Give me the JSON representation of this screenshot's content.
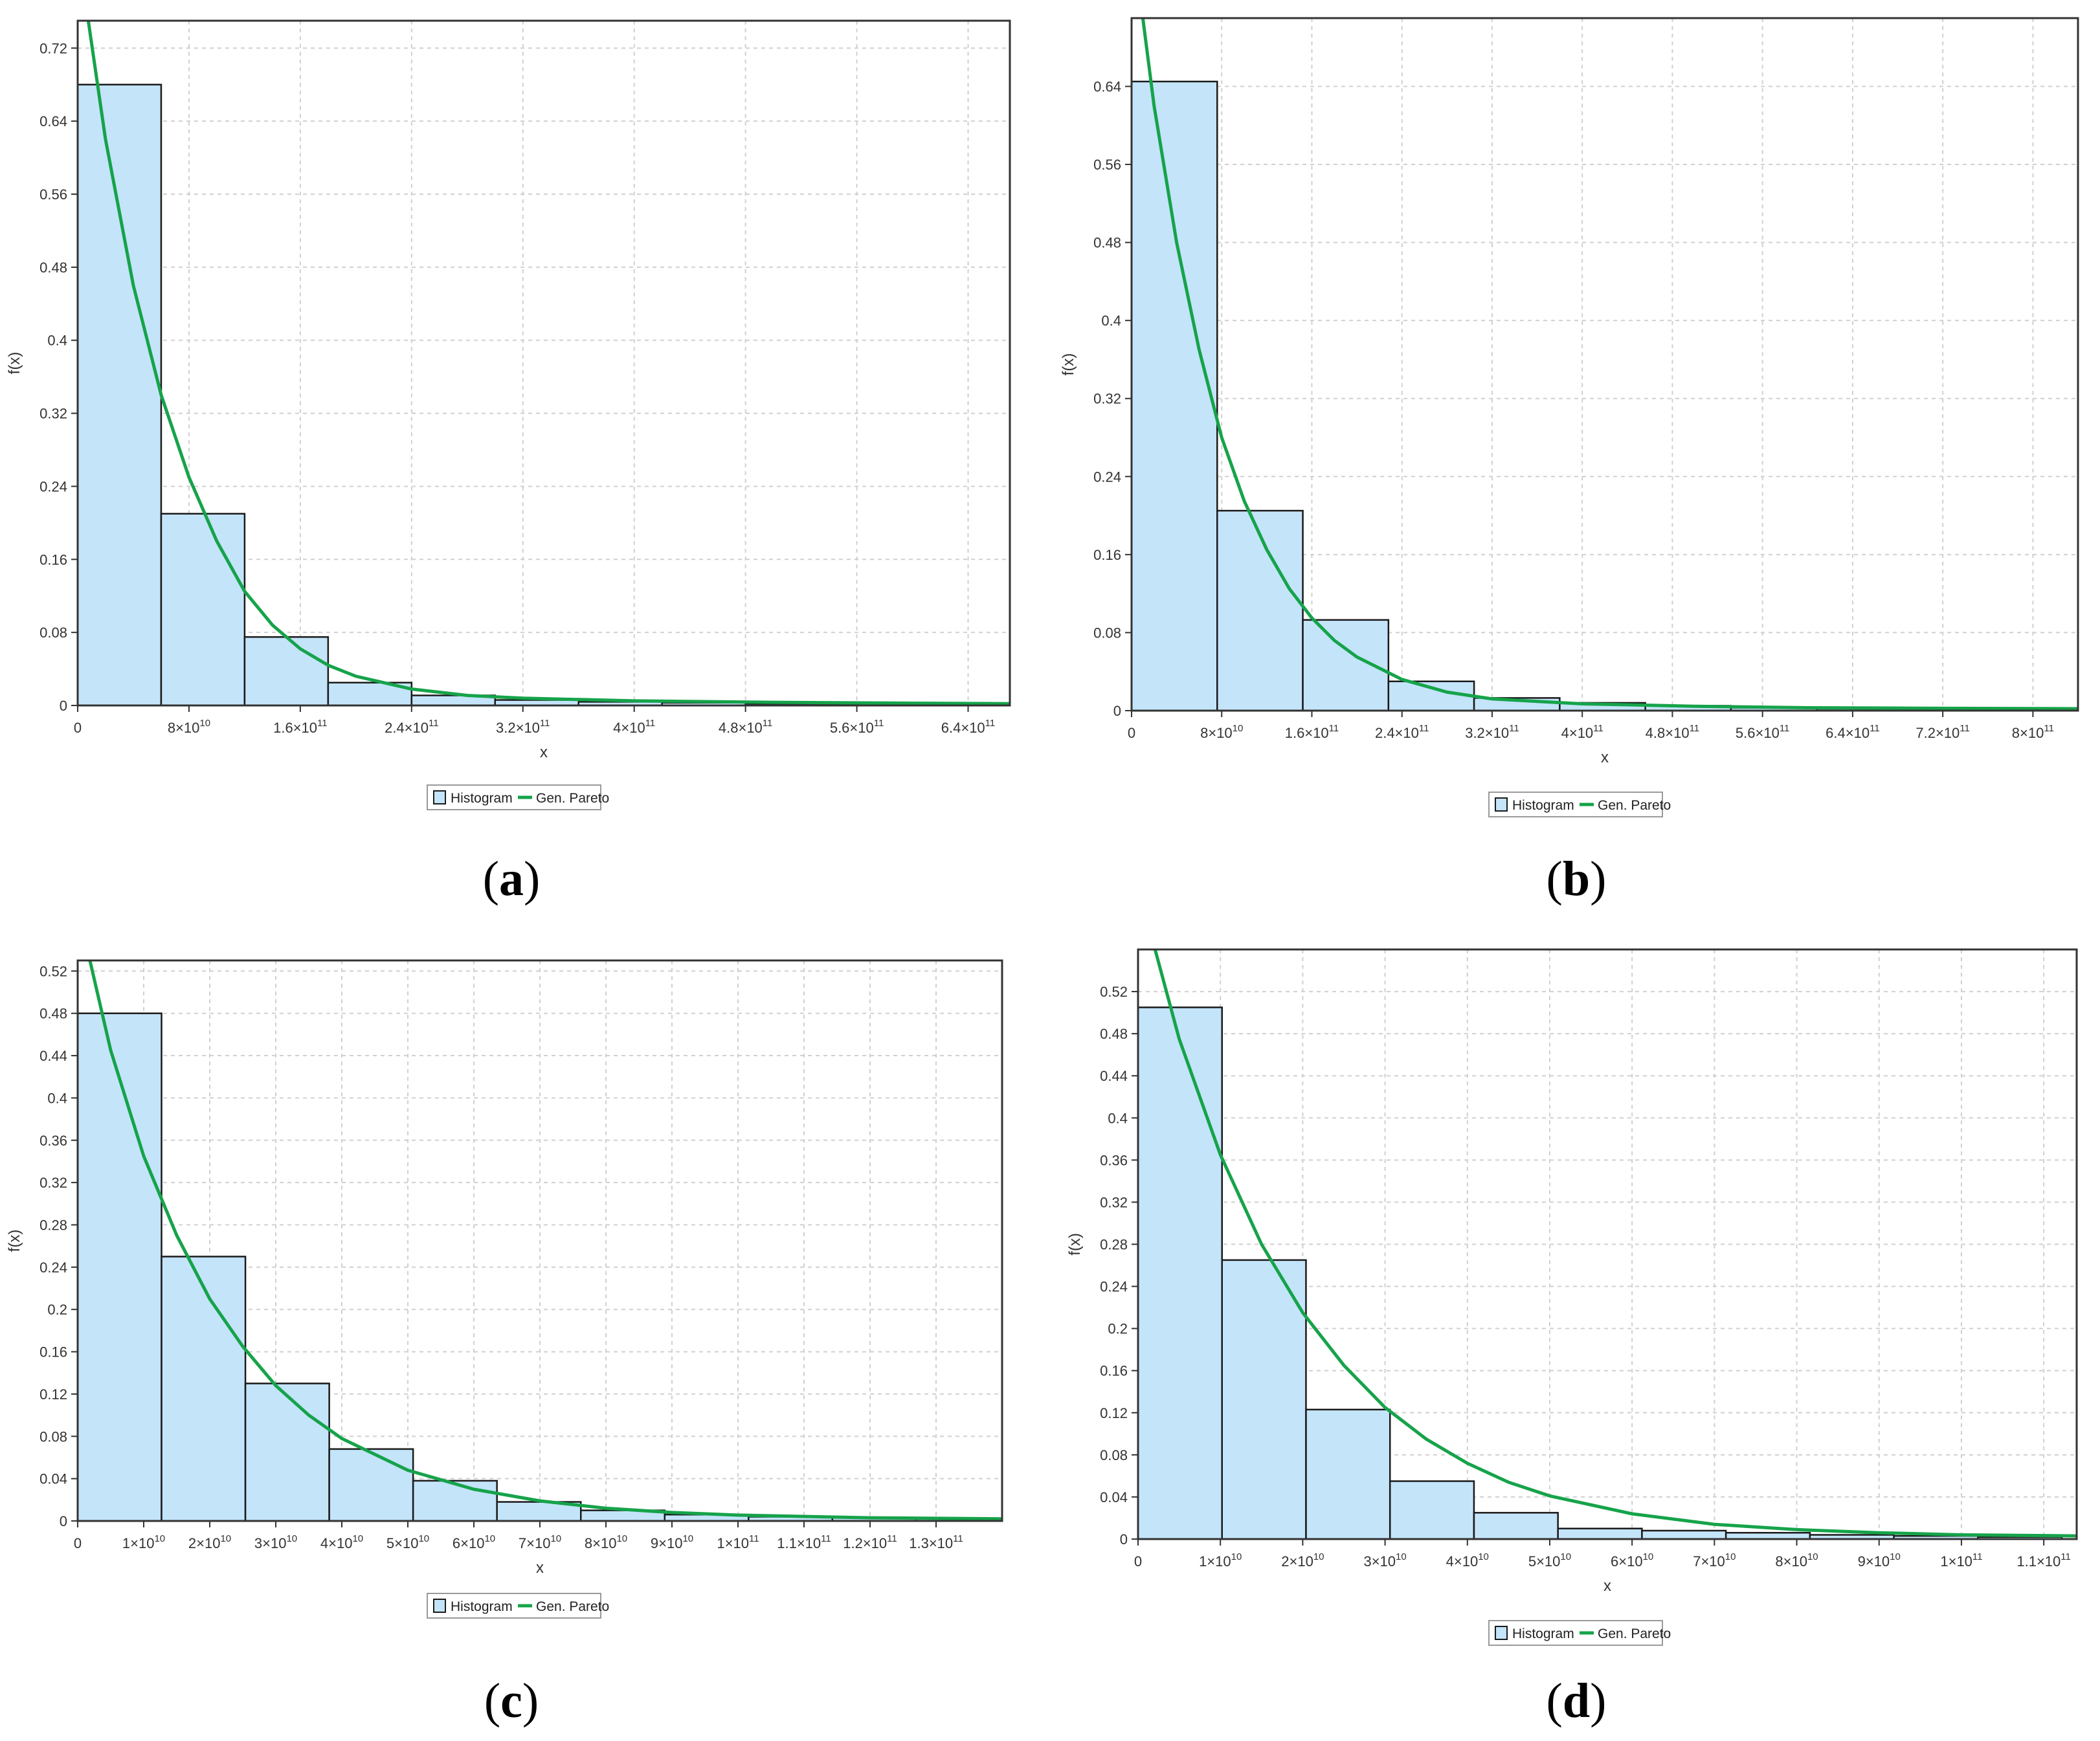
{
  "colors": {
    "bar_fill": "#c4e4fa",
    "bar_stroke": "#1a1a1a",
    "curve": "#16a34a",
    "grid": "#d0d0d0",
    "frame": "#333333"
  },
  "legend": {
    "histogram": "Histogram",
    "curve": "Gen. Pareto"
  },
  "captions": [
    "a",
    "b",
    "c",
    "d"
  ],
  "chart_data": [
    {
      "type": "bar",
      "panel": "a",
      "xlabel": "x",
      "ylabel": "f(x)",
      "xlim": [
        0,
        670000000000.0
      ],
      "ylim": [
        0,
        0.75
      ],
      "yticks": [
        0,
        0.08,
        0.16,
        0.24,
        0.32,
        0.4,
        0.48,
        0.56,
        0.64,
        0.72
      ],
      "yticklabels": [
        "0",
        "0.08",
        "0.16",
        "0.24",
        "0.32",
        "0.4",
        "0.48",
        "0.56",
        "0.64",
        "0.72"
      ],
      "xticks": [
        0,
        80000000000.0,
        160000000000.0,
        240000000000.0,
        320000000000.0,
        400000000000.0,
        480000000000.0,
        560000000000.0,
        640000000000.0
      ],
      "xticklabels": [
        [
          "0",
          ""
        ],
        [
          "8×10",
          "10"
        ],
        [
          "1.6×10",
          "11"
        ],
        [
          "2.4×10",
          "11"
        ],
        [
          "3.2×10",
          "11"
        ],
        [
          "4×10",
          "11"
        ],
        [
          "4.8×10",
          "11"
        ],
        [
          "5.6×10",
          "11"
        ],
        [
          "6.4×10",
          "11"
        ]
      ],
      "bin_edges": [
        0,
        60000000000.0,
        120000000000.0,
        180000000000.0,
        240000000000.0,
        300000000000.0,
        360000000000.0,
        420000000000.0,
        480000000000.0,
        540000000000.0,
        600000000000.0,
        660000000000.0
      ],
      "values": [
        0.68,
        0.21,
        0.075,
        0.025,
        0.011,
        0.006,
        0.004,
        0.003,
        0.002,
        0.002,
        0.002
      ],
      "curve": [
        [
          0,
          0.83
        ],
        [
          20000000000.0,
          0.62
        ],
        [
          40000000000.0,
          0.46
        ],
        [
          60000000000.0,
          0.34
        ],
        [
          80000000000.0,
          0.25
        ],
        [
          100000000000.0,
          0.18
        ],
        [
          120000000000.0,
          0.125
        ],
        [
          140000000000.0,
          0.088
        ],
        [
          160000000000.0,
          0.062
        ],
        [
          180000000000.0,
          0.044
        ],
        [
          200000000000.0,
          0.032
        ],
        [
          240000000000.0,
          0.018
        ],
        [
          280000000000.0,
          0.011
        ],
        [
          320000000000.0,
          0.008
        ],
        [
          400000000000.0,
          0.005
        ],
        [
          500000000000.0,
          0.0035
        ],
        [
          600000000000.0,
          0.0025
        ],
        [
          670000000000.0,
          0.002
        ]
      ],
      "legend": [
        "Histogram",
        "Gen. Pareto"
      ],
      "grid": true,
      "legend_position": "bottom"
    },
    {
      "type": "bar",
      "panel": "b",
      "xlabel": "x",
      "ylabel": "f(x)",
      "xlim": [
        0,
        840000000000.0
      ],
      "ylim": [
        0,
        0.71
      ],
      "yticks": [
        0,
        0.08,
        0.16,
        0.24,
        0.32,
        0.4,
        0.48,
        0.56,
        0.64
      ],
      "yticklabels": [
        "0",
        "0.08",
        "0.16",
        "0.24",
        "0.32",
        "0.4",
        "0.48",
        "0.56",
        "0.64"
      ],
      "xticks": [
        0,
        80000000000.0,
        160000000000.0,
        240000000000.0,
        320000000000.0,
        400000000000.0,
        480000000000.0,
        560000000000.0,
        640000000000.0,
        720000000000.0,
        800000000000.0
      ],
      "xticklabels": [
        [
          "0",
          ""
        ],
        [
          "8×10",
          "10"
        ],
        [
          "1.6×10",
          "11"
        ],
        [
          "2.4×10",
          "11"
        ],
        [
          "3.2×10",
          "11"
        ],
        [
          "4×10",
          "11"
        ],
        [
          "4.8×10",
          "11"
        ],
        [
          "5.6×10",
          "11"
        ],
        [
          "6.4×10",
          "11"
        ],
        [
          "7.2×10",
          "11"
        ],
        [
          "8×10",
          "11"
        ]
      ],
      "bin_edges": [
        0,
        76000000000.0,
        152000000000.0,
        228000000000.0,
        304000000000.0,
        380000000000.0,
        456000000000.0,
        532000000000.0,
        608000000000.0,
        684000000000.0,
        760000000000.0,
        836000000000.0
      ],
      "values": [
        0.645,
        0.205,
        0.093,
        0.03,
        0.013,
        0.008,
        0.005,
        0.003,
        0.002,
        0.002,
        0.002
      ],
      "curve": [
        [
          0,
          0.8
        ],
        [
          20000000000.0,
          0.62
        ],
        [
          40000000000.0,
          0.48
        ],
        [
          60000000000.0,
          0.37
        ],
        [
          80000000000.0,
          0.28
        ],
        [
          100000000000.0,
          0.215
        ],
        [
          120000000000.0,
          0.165
        ],
        [
          140000000000.0,
          0.125
        ],
        [
          160000000000.0,
          0.095
        ],
        [
          180000000000.0,
          0.072
        ],
        [
          200000000000.0,
          0.055
        ],
        [
          240000000000.0,
          0.032
        ],
        [
          280000000000.0,
          0.019
        ],
        [
          320000000000.0,
          0.012
        ],
        [
          400000000000.0,
          0.007
        ],
        [
          500000000000.0,
          0.0045
        ],
        [
          600000000000.0,
          0.003
        ],
        [
          700000000000.0,
          0.0025
        ],
        [
          840000000000.0,
          0.002
        ]
      ],
      "legend": [
        "Histogram",
        "Gen. Pareto"
      ],
      "grid": true,
      "legend_position": "bottom"
    },
    {
      "type": "bar",
      "panel": "c",
      "xlabel": "x",
      "ylabel": "f(x)",
      "xlim": [
        0,
        140000000000.0
      ],
      "ylim": [
        0,
        0.53
      ],
      "yticks": [
        0,
        0.04,
        0.08,
        0.12,
        0.16,
        0.2,
        0.24,
        0.28,
        0.32,
        0.36,
        0.4,
        0.44,
        0.48,
        0.52
      ],
      "yticklabels": [
        "0",
        "0.04",
        "0.08",
        "0.12",
        "0.16",
        "0.2",
        "0.24",
        "0.28",
        "0.32",
        "0.36",
        "0.4",
        "0.44",
        "0.48",
        "0.52"
      ],
      "xticks": [
        0,
        10000000000.0,
        20000000000.0,
        30000000000.0,
        40000000000.0,
        50000000000.0,
        60000000000.0,
        70000000000.0,
        80000000000.0,
        90000000000.0,
        100000000000.0,
        110000000000.0,
        120000000000.0,
        130000000000.0
      ],
      "xticklabels": [
        [
          "0",
          ""
        ],
        [
          "1×10",
          "10"
        ],
        [
          "2×10",
          "10"
        ],
        [
          "3×10",
          "10"
        ],
        [
          "4×10",
          "10"
        ],
        [
          "5×10",
          "10"
        ],
        [
          "6×10",
          "10"
        ],
        [
          "7×10",
          "10"
        ],
        [
          "8×10",
          "10"
        ],
        [
          "9×10",
          "10"
        ],
        [
          "1×10",
          "11"
        ],
        [
          "1.1×10",
          "11"
        ],
        [
          "1.2×10",
          "11"
        ],
        [
          "1.3×10",
          "11"
        ]
      ],
      "bin_edges": [
        0,
        12700000000.0,
        25400000000.0,
        38100000000.0,
        50800000000.0,
        63500000000.0,
        76200000000.0,
        88900000000.0,
        101600000000.0,
        114300000000.0,
        127000000000.0,
        139700000000.0
      ],
      "values": [
        0.48,
        0.25,
        0.13,
        0.068,
        0.038,
        0.018,
        0.01,
        0.006,
        0.004,
        0.003,
        0.002
      ],
      "curve": [
        [
          0,
          0.58
        ],
        [
          5000000000.0,
          0.445
        ],
        [
          10000000000.0,
          0.345
        ],
        [
          15000000000.0,
          0.27
        ],
        [
          20000000000.0,
          0.21
        ],
        [
          25000000000.0,
          0.165
        ],
        [
          30000000000.0,
          0.128
        ],
        [
          35000000000.0,
          0.1
        ],
        [
          40000000000.0,
          0.078
        ],
        [
          50000000000.0,
          0.048
        ],
        [
          60000000000.0,
          0.03
        ],
        [
          70000000000.0,
          0.019
        ],
        [
          80000000000.0,
          0.012
        ],
        [
          90000000000.0,
          0.008
        ],
        [
          100000000000.0,
          0.0055
        ],
        [
          120000000000.0,
          0.003
        ],
        [
          140000000000.0,
          0.002
        ]
      ],
      "legend": [
        "Histogram",
        "Gen. Pareto"
      ],
      "grid": true,
      "legend_position": "bottom"
    },
    {
      "type": "bar",
      "panel": "d",
      "xlabel": "x",
      "ylabel": "f(x)",
      "xlim": [
        0,
        114000000000.0
      ],
      "ylim": [
        0,
        0.56
      ],
      "yticks": [
        0,
        0.04,
        0.08,
        0.12,
        0.16,
        0.2,
        0.24,
        0.28,
        0.32,
        0.36,
        0.4,
        0.44,
        0.48,
        0.52
      ],
      "yticklabels": [
        "0",
        "0.04",
        "0.08",
        "0.12",
        "0.16",
        "0.2",
        "0.24",
        "0.28",
        "0.32",
        "0.36",
        "0.4",
        "0.44",
        "0.48",
        "0.52"
      ],
      "xticks": [
        0,
        10000000000.0,
        20000000000.0,
        30000000000.0,
        40000000000.0,
        50000000000.0,
        60000000000.0,
        70000000000.0,
        80000000000.0,
        90000000000.0,
        100000000000.0,
        110000000000.0
      ],
      "xticklabels": [
        [
          "0",
          ""
        ],
        [
          "1×10",
          "10"
        ],
        [
          "2×10",
          "10"
        ],
        [
          "3×10",
          "10"
        ],
        [
          "4×10",
          "10"
        ],
        [
          "5×10",
          "10"
        ],
        [
          "6×10",
          "10"
        ],
        [
          "7×10",
          "10"
        ],
        [
          "8×10",
          "10"
        ],
        [
          "9×10",
          "10"
        ],
        [
          "1×10",
          "11"
        ],
        [
          "1.1×10",
          "11"
        ]
      ],
      "bin_edges": [
        0,
        10200000000.0,
        20400000000.0,
        30600000000.0,
        40800000000.0,
        51000000000.0,
        61200000000.0,
        71400000000.0,
        81600000000.0,
        91800000000.0,
        102000000000.0,
        112200000000.0
      ],
      "values": [
        0.505,
        0.265,
        0.123,
        0.055,
        0.025,
        0.01,
        0.008,
        0.006,
        0.004,
        0.003,
        0.002
      ],
      "curve": [
        [
          0,
          0.62
        ],
        [
          5000000000.0,
          0.475
        ],
        [
          10000000000.0,
          0.365
        ],
        [
          15000000000.0,
          0.28
        ],
        [
          20000000000.0,
          0.215
        ],
        [
          25000000000.0,
          0.165
        ],
        [
          30000000000.0,
          0.125
        ],
        [
          35000000000.0,
          0.095
        ],
        [
          40000000000.0,
          0.072
        ],
        [
          45000000000.0,
          0.054
        ],
        [
          50000000000.0,
          0.041
        ],
        [
          60000000000.0,
          0.024
        ],
        [
          70000000000.0,
          0.014
        ],
        [
          80000000000.0,
          0.009
        ],
        [
          90000000000.0,
          0.006
        ],
        [
          100000000000.0,
          0.004
        ],
        [
          114000000000.0,
          0.003
        ]
      ],
      "legend": [
        "Histogram",
        "Gen. Pareto"
      ],
      "grid": true,
      "legend_position": "bottom"
    }
  ]
}
